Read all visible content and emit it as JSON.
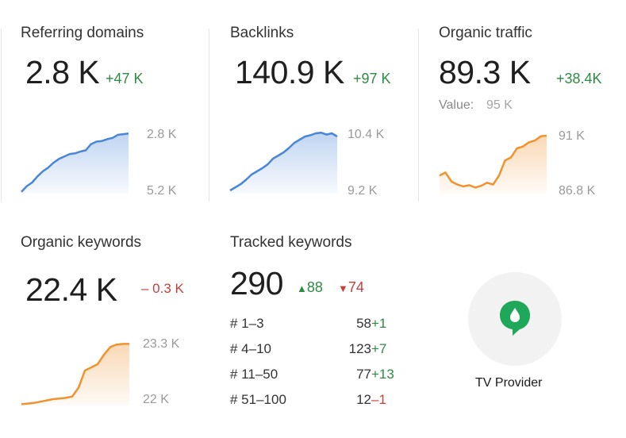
{
  "metrics": {
    "referring_domains": {
      "title": "Referring domains",
      "value": "2.8 K",
      "delta": "+47 K",
      "axis_top": "2.8 K",
      "axis_bottom": "5.2 K",
      "color": "#4a86d8"
    },
    "backlinks": {
      "title": "Backlinks",
      "value": "140.9 K",
      "delta": "+97 K",
      "axis_top": "10.4 K",
      "axis_bottom": "9.2 K",
      "color": "#4a86d8"
    },
    "organic_traffic": {
      "title": "Organic traffic",
      "value": "89.3 K",
      "delta": "+38.4K",
      "value_label": "Value:",
      "value_amount": "95 K",
      "axis_top": "91 K",
      "axis_bottom": "86.8 K",
      "color": "#f0922e"
    },
    "organic_keywords": {
      "title": "Organic keywords",
      "value": "22.4 K",
      "delta": "– 0.3 K",
      "axis_top": "23.3 K",
      "axis_bottom": "22 K",
      "color": "#f0922e"
    }
  },
  "tracked": {
    "title": "Tracked keywords",
    "value": "290",
    "up": "88",
    "down": "74",
    "rows": [
      {
        "range": "# 1–3",
        "count": "58",
        "change": "+1",
        "dir": "pos"
      },
      {
        "range": "# 4–10",
        "count": "123",
        "change": "+7",
        "dir": "pos"
      },
      {
        "range": "# 11–50",
        "count": "77",
        "change": "+13",
        "dir": "pos"
      },
      {
        "range": "# 51–100",
        "count": "12",
        "change": "–1",
        "dir": "neg"
      }
    ]
  },
  "provider": {
    "label": "TV Provider",
    "icon": "location-pin-icon",
    "color": "#1fa85a"
  },
  "sparklines": {
    "referring_domains": [
      0.03,
      0.12,
      0.18,
      0.28,
      0.36,
      0.42,
      0.5,
      0.56,
      0.6,
      0.64,
      0.65,
      0.68,
      0.7,
      0.8,
      0.84,
      0.85,
      0.88,
      0.9,
      0.95,
      0.96,
      0.97
    ],
    "backlinks": [
      0.05,
      0.1,
      0.15,
      0.22,
      0.3,
      0.35,
      0.4,
      0.46,
      0.55,
      0.6,
      0.65,
      0.72,
      0.8,
      0.85,
      0.9,
      0.92,
      0.95,
      0.96,
      0.93,
      0.95,
      0.9
    ],
    "organic_traffic": [
      0.3,
      0.35,
      0.2,
      0.15,
      0.12,
      0.14,
      0.1,
      0.13,
      0.18,
      0.15,
      0.3,
      0.55,
      0.6,
      0.75,
      0.78,
      0.85,
      0.88,
      0.95,
      0.96
    ],
    "organic_keywords": [
      0.02,
      0.03,
      0.04,
      0.06,
      0.08,
      0.1,
      0.11,
      0.12,
      0.14,
      0.28,
      0.55,
      0.6,
      0.65,
      0.8,
      0.92,
      0.96,
      0.97,
      0.97
    ]
  }
}
